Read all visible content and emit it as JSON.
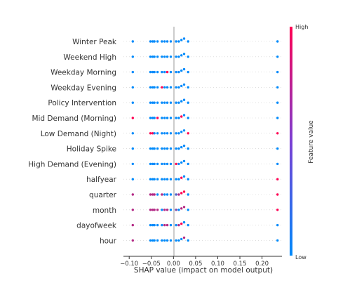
{
  "chart_data": {
    "type": "scatter",
    "xlabel": "SHAP value (impact on model output)",
    "xlim": [
      -0.113,
      0.245
    ],
    "xticks": [
      -0.1,
      -0.05,
      0.0,
      0.05,
      0.1,
      0.15,
      0.2
    ],
    "xtick_labels": [
      "−0.10",
      "−0.05",
      "0.00",
      "0.05",
      "0.10",
      "0.15",
      "0.20"
    ],
    "features": [
      "Winter Peak",
      "Weekend High",
      "Weekday Morning",
      "Weekday Evening",
      "Policy Intervention",
      "Mid Demand (Morning)",
      "Low Demand (Night)",
      "Holiday Spike",
      "High Demand (Evening)",
      "halfyear",
      "quarter",
      "month",
      "dayofweek",
      "hour"
    ],
    "colorbar": {
      "label": "Feature value",
      "high": "High",
      "low": "Low"
    },
    "colors": {
      "low": "#008afb",
      "high": "#ff0052",
      "axis": "#333333",
      "zero_line": "#999999"
    },
    "shap_x": [
      -0.092,
      -0.052,
      -0.047,
      -0.043,
      -0.036,
      -0.026,
      -0.02,
      -0.014,
      -0.006,
      0.006,
      0.012,
      0.018,
      0.024,
      0.033,
      0.235
    ],
    "points": [
      {
        "feature": "Winter Peak",
        "color_values": [
          0,
          0,
          0,
          0,
          0,
          0,
          0,
          0,
          0,
          0,
          0,
          0,
          0,
          0,
          0
        ],
        "bumps": [
          0,
          0,
          0,
          0,
          0,
          0,
          0,
          0,
          0,
          0,
          0,
          0.5,
          1,
          0,
          0
        ]
      },
      {
        "feature": "Weekend High",
        "color_values": [
          0,
          0,
          0,
          0,
          0,
          0,
          0,
          0,
          0,
          0,
          0,
          0,
          0,
          0,
          0
        ],
        "bumps": [
          0,
          0,
          0,
          0,
          0,
          0,
          0,
          0,
          0,
          0,
          0,
          0.5,
          1,
          0,
          0
        ]
      },
      {
        "feature": "Weekday Morning",
        "color_values": [
          0,
          0,
          0,
          0,
          0,
          0,
          0,
          1,
          0,
          0,
          0,
          0,
          0,
          0,
          0
        ],
        "bumps": [
          0,
          0,
          0,
          0,
          0,
          0,
          0,
          0,
          0,
          0,
          0,
          0.5,
          1,
          0,
          0
        ]
      },
      {
        "feature": "Weekday Evening",
        "color_values": [
          0,
          0,
          0,
          0,
          0,
          1,
          0,
          0,
          0,
          0,
          0,
          0,
          0,
          0,
          0
        ],
        "bumps": [
          0,
          0,
          0,
          0,
          0,
          0,
          0,
          0,
          0,
          0,
          0,
          0.5,
          1,
          0,
          0
        ]
      },
      {
        "feature": "Policy Intervention",
        "color_values": [
          0,
          0,
          0,
          0,
          0,
          0,
          0,
          0,
          0,
          0,
          0,
          0,
          0,
          0,
          0
        ],
        "bumps": [
          0,
          0,
          0,
          0,
          0,
          0,
          0,
          0,
          0,
          0,
          0,
          0.5,
          1,
          0,
          0
        ]
      },
      {
        "feature": "Mid Demand (Morning)",
        "color_values": [
          1,
          0,
          0,
          0,
          1,
          0,
          0,
          0,
          0,
          0,
          0,
          1,
          0,
          0,
          0
        ],
        "bumps": [
          0,
          0,
          0,
          0,
          0,
          0,
          0,
          0,
          0,
          0,
          0,
          0.5,
          1,
          0,
          0
        ]
      },
      {
        "feature": "Low Demand (Night)",
        "color_values": [
          0,
          1,
          1,
          0,
          0,
          0,
          0,
          0,
          0,
          0,
          0,
          0,
          0,
          1,
          1
        ],
        "bumps": [
          0,
          0,
          0,
          0,
          0,
          0,
          0,
          0,
          0,
          0,
          0,
          0.5,
          1,
          0,
          0
        ]
      },
      {
        "feature": "Holiday Spike",
        "color_values": [
          0,
          0,
          0,
          0,
          0,
          0,
          0,
          0,
          0,
          0,
          0,
          0,
          0,
          0,
          0
        ],
        "bumps": [
          0,
          0,
          0,
          0,
          0,
          0,
          0,
          0,
          0,
          0,
          0,
          0.5,
          1,
          0,
          0
        ]
      },
      {
        "feature": "High Demand (Evening)",
        "color_values": [
          0,
          0,
          0,
          0,
          0,
          0,
          0,
          0,
          0,
          1,
          0,
          0,
          0,
          0,
          0
        ],
        "bumps": [
          0,
          0,
          0,
          0,
          0,
          0,
          0,
          0,
          0,
          0,
          0,
          0.5,
          1,
          0,
          0
        ]
      },
      {
        "feature": "halfyear",
        "color_values": [
          0,
          0,
          0,
          0,
          0,
          0,
          0,
          0,
          0,
          0,
          0,
          1,
          0,
          0,
          1
        ],
        "bumps": [
          0,
          0,
          0,
          0,
          0,
          0,
          0,
          0,
          0,
          0,
          0,
          0.5,
          1,
          0,
          0
        ]
      },
      {
        "feature": "quarter",
        "color_values": [
          0.7,
          0.7,
          0.7,
          0.7,
          0,
          0.7,
          0,
          0,
          0,
          0.3,
          0.7,
          1,
          1,
          0,
          1
        ],
        "bumps": [
          0,
          0,
          0,
          0,
          0,
          0,
          0,
          0,
          0,
          0,
          0,
          0.5,
          1,
          0,
          0
        ]
      },
      {
        "feature": "month",
        "color_values": [
          0.7,
          0.7,
          0.7,
          0.7,
          0.7,
          0,
          0.7,
          0.7,
          0,
          0.5,
          0,
          0.7,
          0.7,
          0,
          1
        ],
        "bumps": [
          0,
          0,
          0,
          0,
          0,
          0,
          0,
          0,
          0,
          0,
          0,
          0.5,
          1,
          0,
          0
        ]
      },
      {
        "feature": "dayofweek",
        "color_values": [
          0.7,
          0,
          0,
          0,
          0,
          0,
          0.7,
          0.7,
          0,
          0,
          0.7,
          1,
          0,
          0,
          0
        ],
        "bumps": [
          0,
          0,
          0,
          0,
          0,
          0,
          0,
          0,
          0,
          0,
          0,
          0.5,
          1,
          0,
          0
        ]
      },
      {
        "feature": "hour",
        "color_values": [
          0.7,
          0,
          0,
          0,
          0,
          0,
          0,
          0,
          0,
          0,
          0,
          0,
          0.7,
          0,
          0
        ],
        "bumps": [
          0,
          0,
          0,
          0,
          0,
          0,
          0,
          0,
          0,
          0,
          0,
          0.5,
          1,
          0,
          0
        ]
      }
    ]
  }
}
